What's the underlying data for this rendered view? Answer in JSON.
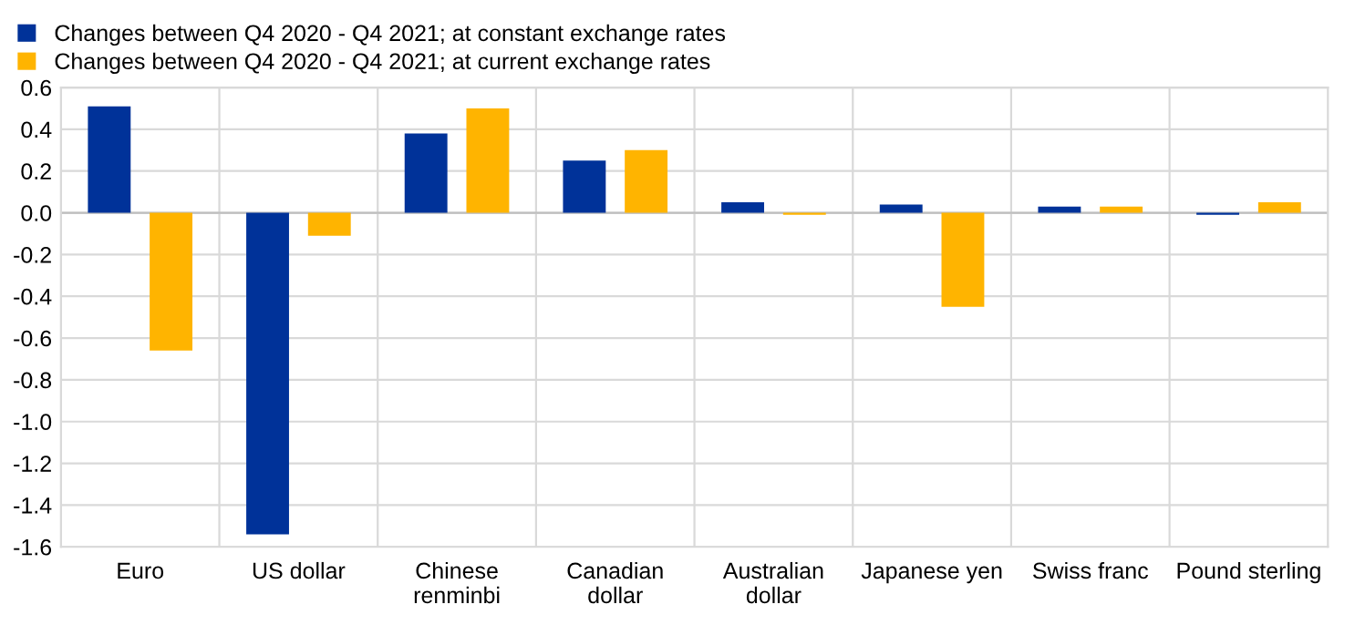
{
  "chart_data": {
    "type": "bar",
    "categories": [
      "Euro",
      "US dollar",
      "Chinese\nrenminbi",
      "Canadian\ndollar",
      "Australian\ndollar",
      "Japanese yen",
      "Swiss franc",
      "Pound sterling"
    ],
    "series": [
      {
        "name": "Changes between Q4 2020 - Q4 2021; at constant exchange rates",
        "color": "#003299",
        "values": [
          0.51,
          -1.54,
          0.38,
          0.25,
          0.05,
          0.04,
          0.03,
          -0.01
        ]
      },
      {
        "name": "Changes between Q4 2020 - Q4 2021; at current exchange rates",
        "color": "#ffb400",
        "values": [
          -0.66,
          -0.11,
          0.5,
          0.3,
          -0.01,
          -0.45,
          0.03,
          0.05
        ]
      }
    ],
    "ylim": [
      -1.6,
      0.6
    ],
    "yticks": [
      {
        "value": -1.6,
        "label": "-1.6"
      },
      {
        "value": -1.4,
        "label": "-1.4"
      },
      {
        "value": -1.2,
        "label": "-1.2"
      },
      {
        "value": -1.0,
        "label": "-1.0"
      },
      {
        "value": -0.8,
        "label": "-0.8"
      },
      {
        "value": -0.6,
        "label": "-0.6"
      },
      {
        "value": -0.4,
        "label": "-0.4"
      },
      {
        "value": -0.2,
        "label": "-0.2"
      },
      {
        "value": 0.0,
        "label": "0.0"
      },
      {
        "value": 0.2,
        "label": "0.2"
      },
      {
        "value": 0.4,
        "label": "0.4"
      },
      {
        "value": 0.6,
        "label": "0.6"
      }
    ],
    "grid": true,
    "legend": "top left"
  }
}
